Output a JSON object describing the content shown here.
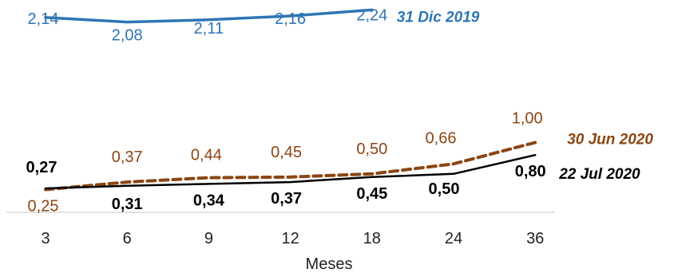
{
  "chart_data": {
    "type": "line",
    "xlabel": "Meses",
    "ylabel": "",
    "categories": [
      "3",
      "6",
      "9",
      "12",
      "18",
      "24",
      "36"
    ],
    "ylim": [
      0,
      2.3
    ],
    "series": [
      {
        "name": "31 Dic 2019",
        "x": [
          "3",
          "6",
          "9",
          "12",
          "18"
        ],
        "values": [
          2.14,
          2.08,
          2.11,
          2.16,
          2.24
        ],
        "labels": [
          "2,14",
          "2,08",
          "2,11",
          "2,16",
          "2,24"
        ],
        "color": "#2e75b6",
        "style": "solid"
      },
      {
        "name": "30 Jun 2020",
        "x": [
          "3",
          "6",
          "9",
          "12",
          "18",
          "24",
          "36"
        ],
        "values": [
          0.25,
          0.37,
          0.44,
          0.45,
          0.5,
          0.66,
          1.0
        ],
        "labels": [
          "0,25",
          "0,37",
          "0,44",
          "0,45",
          "0,50",
          "0,66",
          "1,00"
        ],
        "color": "#8b4513",
        "style": "dashed"
      },
      {
        "name": "22 Jul 2020",
        "x": [
          "3",
          "6",
          "9",
          "12",
          "18",
          "24",
          "36"
        ],
        "values": [
          0.27,
          0.31,
          0.34,
          0.37,
          0.45,
          0.5,
          0.8
        ],
        "labels": [
          "0,27",
          "0,31",
          "0,34",
          "0,37",
          "0,45",
          "0,50",
          "0,80"
        ],
        "color": "#000000",
        "style": "solid"
      }
    ],
    "grid": false,
    "legend": "inline-right"
  }
}
